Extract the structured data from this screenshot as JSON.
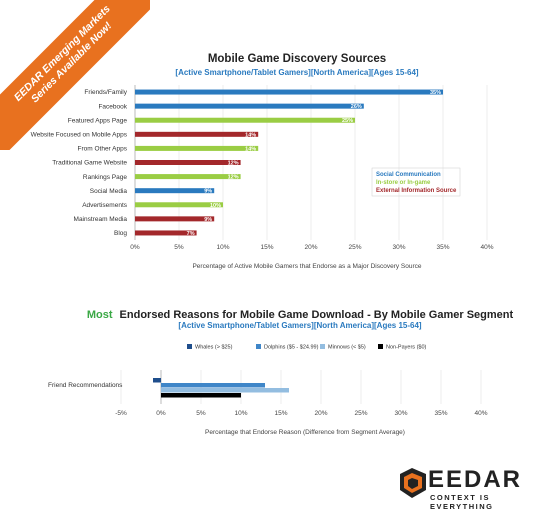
{
  "banner": {
    "line1": "EEDAR Emerging Markets",
    "line2": "Series Available Now!"
  },
  "logo": {
    "word": "EEDAR",
    "tagline": "CONTEXT IS EVERYTHING"
  },
  "colors": {
    "social": "#2a7abf",
    "instore": "#9acd44",
    "external": "#a3282b",
    "whales": "#1f4e8c",
    "dolphins": "#3f86c8",
    "minnows": "#93bde0",
    "nonpayers": "#000000",
    "banner": "#e8711f",
    "subtitle": "#2a7abf",
    "most": "#3aa845"
  },
  "chart_data": [
    {
      "type": "bar",
      "orientation": "horizontal",
      "title": "Mobile Game Discovery Sources",
      "subtitle": "[Active Smartphone/Tablet Gamers][North America][Ages 15-64]",
      "xlabel": "Percentage of Active Mobile Gamers that Endorse as a Major Discovery Source",
      "xlim": [
        0,
        40
      ],
      "xticks": [
        "0%",
        "5%",
        "10%",
        "15%",
        "20%",
        "25%",
        "30%",
        "35%",
        "40%"
      ],
      "legend": {
        "placement": "right",
        "entries": [
          "Social Communication",
          "In-store or In-game",
          "External Information Source"
        ]
      },
      "categories": [
        "Friends/Family",
        "Facebook",
        "Featured Apps Page",
        "Website Focused on Mobile Apps",
        "From Other Apps",
        "Traditional Game Website",
        "Rankings Page",
        "Social Media",
        "Advertisements",
        "Mainstream Media",
        "Blog"
      ],
      "values": [
        35,
        26,
        25,
        14,
        14,
        12,
        12,
        9,
        10,
        9,
        7
      ],
      "labels": [
        "35%",
        "26%",
        "25%",
        "14%",
        "14%",
        "12%",
        "12%",
        "9%",
        "10%",
        "9%",
        "7%"
      ],
      "groups": [
        "social",
        "social",
        "instore",
        "external",
        "instore",
        "external",
        "instore",
        "social",
        "instore",
        "external",
        "external"
      ]
    },
    {
      "type": "bar",
      "orientation": "horizontal",
      "title_highlight": "Most",
      "title": "Endorsed Reasons for Mobile Game Download - By Mobile Gamer Segment",
      "subtitle": "[Active Smartphone/Tablet Gamers][North America][Ages 15-64]",
      "xlabel": "Percentage that Endorse Reason (Difference from Segment Average)",
      "xlim": [
        -5,
        40
      ],
      "xticks": [
        "-5%",
        "0%",
        "5%",
        "10%",
        "15%",
        "20%",
        "25%",
        "30%",
        "35%",
        "40%"
      ],
      "categories": [
        "Friend Recommendations"
      ],
      "series": [
        {
          "name": "Whales (> $25)",
          "values": [
            -1
          ]
        },
        {
          "name": "Dolphins ($5 - $24.99)",
          "values": [
            13
          ]
        },
        {
          "name": "Minnows (< $5)",
          "values": [
            16
          ]
        },
        {
          "name": "Non-Payers ($0)",
          "values": [
            10
          ]
        }
      ],
      "legend": {
        "placement": "top"
      }
    }
  ]
}
